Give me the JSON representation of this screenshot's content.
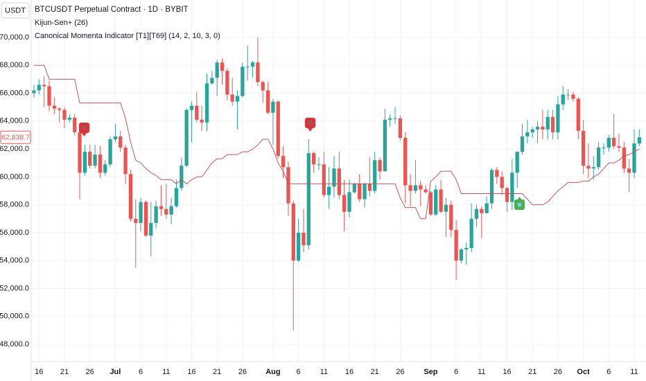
{
  "chart_data": {
    "type": "candlestick",
    "currency": "USDT",
    "indicator": "Canonical Momenta Indicator [T1][T69] (14, 2, 10, 3, 0)",
    "grid": true,
    "categories": [
      null,
      "16",
      null,
      null,
      null,
      null,
      "21",
      null,
      null,
      null,
      null,
      "26",
      null,
      null,
      null,
      null,
      "Jul",
      null,
      null,
      null,
      null,
      "6",
      null,
      null,
      null,
      null,
      "11",
      null,
      null,
      null,
      null,
      "16",
      null,
      null,
      null,
      null,
      "21",
      null,
      null,
      null,
      null,
      "26",
      null,
      null,
      null,
      null,
      null,
      "Aug",
      null,
      null,
      null,
      null,
      "6",
      null,
      null,
      null,
      null,
      "11",
      null,
      null,
      null,
      null,
      "16",
      null,
      null,
      null,
      null,
      "21",
      null,
      null,
      null,
      null,
      "26",
      null,
      null,
      null,
      null,
      null,
      "Sep",
      null,
      null,
      null,
      null,
      "6",
      null,
      null,
      null,
      null,
      "11",
      null,
      null,
      null,
      null,
      "16",
      null,
      null,
      null,
      null,
      "21",
      null,
      null,
      null,
      null,
      "26",
      null,
      null,
      null,
      null,
      "Oct",
      null,
      null,
      null,
      null,
      "6",
      null,
      null,
      null,
      null,
      "11",
      null
    ],
    "series": [
      {
        "name": "BTCUSDT Perpetual Contract · 1D · BYBIT",
        "type": "candlestick",
        "up_color": "#26a69a",
        "down_color": "#ef5350",
        "open": [
          66000,
          66200,
          66600,
          66500,
          65100,
          64900,
          64800,
          64100,
          64250,
          63200,
          60300,
          61800,
          60800,
          61600,
          60300,
          60900,
          62700,
          62900,
          62100,
          60200,
          57000,
          56700,
          58200,
          55800,
          56700,
          57900,
          57700,
          57300,
          57900,
          59200,
          60800,
          64800,
          65100,
          64100,
          63900,
          66700,
          67100,
          68200,
          67600,
          65900,
          65400,
          65800,
          67900,
          67900,
          68200,
          66800,
          66200,
          64600,
          65400,
          61500,
          60700,
          58100,
          54000,
          56000,
          55100,
          61700,
          60900,
          60900,
          58700,
          59300,
          60600,
          58700,
          57500,
          58900,
          59500,
          58400,
          59500,
          59000,
          61200,
          60400,
          64100,
          64200,
          64200,
          62800,
          59400,
          59000,
          59400,
          59100,
          58900,
          57300,
          59100,
          57500,
          58000,
          56200,
          54000,
          54800,
          54900,
          57000,
          57700,
          57400,
          58100,
          60500,
          60000,
          59200,
          58200,
          60300,
          61800,
          62900,
          63200,
          63400,
          63600,
          63400,
          64300,
          63200,
          65200,
          65900,
          65900,
          65600,
          63300,
          60800,
          60600,
          60700,
          62100,
          62100,
          62800,
          62200,
          62100,
          60600,
          60300,
          62400
        ],
        "high": [
          66600,
          67000,
          67200,
          66900,
          65700,
          65000,
          65000,
          64500,
          64500,
          63400,
          62300,
          62300,
          62300,
          62200,
          61200,
          62900,
          63800,
          63300,
          62300,
          60500,
          58400,
          58500,
          58300,
          58200,
          58300,
          59400,
          59500,
          58500,
          59800,
          61400,
          64900,
          65400,
          66100,
          65100,
          67400,
          67600,
          68400,
          68500,
          67800,
          67100,
          66200,
          68200,
          69400,
          68300,
          70000,
          66900,
          66800,
          65600,
          65500,
          62200,
          61100,
          58300,
          57000,
          57700,
          62700,
          61800,
          61400,
          61800,
          60700,
          61500,
          61800,
          59800,
          59800,
          59600,
          60200,
          59600,
          61400,
          61800,
          61400,
          64900,
          64500,
          65000,
          64400,
          63200,
          60200,
          61200,
          59700,
          59400,
          59000,
          59400,
          59800,
          58500,
          58300,
          56900,
          54900,
          55300,
          58100,
          58000,
          57900,
          58600,
          60600,
          60700,
          60400,
          59300,
          61300,
          61800,
          63800,
          64100,
          63600,
          64000,
          64800,
          64800,
          64800,
          65800,
          66500,
          66300,
          66100,
          65700,
          64100,
          62400,
          61500,
          62500,
          62400,
          63000,
          64500,
          63100,
          62500,
          61300,
          63400,
          63400
        ],
        "low": [
          65700,
          65900,
          65000,
          64700,
          64500,
          63900,
          63500,
          63900,
          63000,
          58400,
          60100,
          60600,
          60600,
          59900,
          60100,
          60700,
          62500,
          61800,
          59500,
          56800,
          53500,
          56100,
          55700,
          54300,
          56300,
          57200,
          57000,
          56600,
          57800,
          59000,
          60700,
          62500,
          63900,
          63300,
          63300,
          66600,
          65800,
          66600,
          65500,
          65100,
          63400,
          65700,
          66900,
          67100,
          66500,
          65300,
          64500,
          62300,
          61300,
          59900,
          57200,
          49000,
          53900,
          54600,
          54800,
          60300,
          60500,
          58500,
          57700,
          58500,
          58400,
          56100,
          57100,
          58800,
          58200,
          57800,
          58600,
          58800,
          59800,
          60400,
          63600,
          63800,
          62600,
          58100,
          57900,
          58800,
          57900,
          58800,
          57200,
          57200,
          57400,
          55700,
          55700,
          52600,
          53800,
          53700,
          54600,
          56400,
          55600,
          57400,
          57700,
          59500,
          58700,
          57500,
          57600,
          59200,
          61600,
          62400,
          62800,
          62400,
          62700,
          62700,
          62700,
          62700,
          64800,
          65500,
          65400,
          62700,
          60200,
          59900,
          59800,
          60500,
          61600,
          61800,
          62000,
          61800,
          60300,
          58900,
          59900,
          62200
        ],
        "close": [
          66200,
          66600,
          66500,
          65100,
          64900,
          64800,
          64100,
          64250,
          63200,
          60300,
          61800,
          60800,
          61600,
          60300,
          60900,
          62700,
          62900,
          62100,
          60200,
          57000,
          56700,
          58200,
          55800,
          56700,
          57900,
          57700,
          57300,
          57900,
          59200,
          60800,
          64800,
          65100,
          64100,
          63900,
          66700,
          67100,
          68200,
          67600,
          65900,
          65400,
          65800,
          67900,
          67900,
          68200,
          66800,
          66200,
          64600,
          65400,
          61500,
          60700,
          58100,
          54000,
          56000,
          55100,
          61700,
          60900,
          60900,
          58700,
          59300,
          60600,
          58700,
          57500,
          58900,
          59500,
          58400,
          59500,
          59000,
          61200,
          60400,
          64100,
          64200,
          64200,
          62800,
          59400,
          59000,
          59400,
          59100,
          58900,
          57300,
          59100,
          57500,
          58000,
          56200,
          54000,
          54800,
          54900,
          57000,
          57700,
          57400,
          58100,
          60500,
          60000,
          59200,
          58200,
          60300,
          61800,
          62900,
          63200,
          63400,
          63600,
          63400,
          64300,
          63200,
          65200,
          65900,
          65900,
          65600,
          63300,
          60800,
          60600,
          60700,
          62100,
          62100,
          62800,
          62200,
          62100,
          60600,
          60300,
          62400,
          62838.7
        ]
      },
      {
        "name": "Kijun-Sen+ (26)",
        "type": "line",
        "color": "#c0565c",
        "values": [
          68000,
          68000,
          68000,
          67000,
          67000,
          67000,
          67000,
          67000,
          67000,
          65300,
          65300,
          65300,
          65300,
          65300,
          65300,
          65300,
          65300,
          65300,
          64200,
          62500,
          61200,
          61000,
          60600,
          60300,
          60100,
          59800,
          59800,
          59800,
          59500,
          59800,
          59500,
          59800,
          60000,
          60000,
          60500,
          61000,
          61300,
          61300,
          61600,
          61600,
          61600,
          61800,
          61800,
          62000,
          62300,
          62700,
          62700,
          62000,
          61000,
          60400,
          59500,
          59500,
          59500,
          59500,
          59500,
          59500,
          59500,
          59500,
          59500,
          59500,
          59500,
          59500,
          59500,
          59500,
          59500,
          59500,
          59500,
          59500,
          59500,
          59500,
          59500,
          59500,
          58500,
          57800,
          57800,
          57800,
          57000,
          57000,
          59700,
          60000,
          60400,
          60400,
          60400,
          59800,
          58800,
          58800,
          58800,
          58800,
          58800,
          58800,
          58800,
          58800,
          58800,
          58800,
          58800,
          58800,
          58800,
          58400,
          58000,
          58000,
          58000,
          58200,
          58600,
          59000,
          59300,
          59600,
          59600,
          59600,
          59700,
          59700,
          60000,
          60200,
          60600,
          61000,
          61000,
          61200,
          61500,
          61600,
          61800,
          62000
        ]
      }
    ],
    "price_label": {
      "value": 62838.7,
      "label": "62,838.7"
    },
    "ylim": [
      46760,
      72680
    ],
    "yticks": [
      {
        "value": 48000,
        "label": "48,000.0"
      },
      {
        "value": 50000,
        "label": "50,000.0"
      },
      {
        "value": 52000,
        "label": "52,000.0"
      },
      {
        "value": 54000,
        "label": "54,000.0"
      },
      {
        "value": 56000,
        "label": "56,000.0"
      },
      {
        "value": 58000,
        "label": "58,000.0"
      },
      {
        "value": 60000,
        "label": "60,000.0"
      },
      {
        "value": 62000,
        "label": "62,000.0"
      },
      {
        "value": 64000,
        "label": "64,000.0"
      },
      {
        "value": 66000,
        "label": "66,000.0"
      },
      {
        "value": 68000,
        "label": "68,000.0"
      },
      {
        "value": 70000,
        "label": "70,000.0"
      }
    ]
  }
}
